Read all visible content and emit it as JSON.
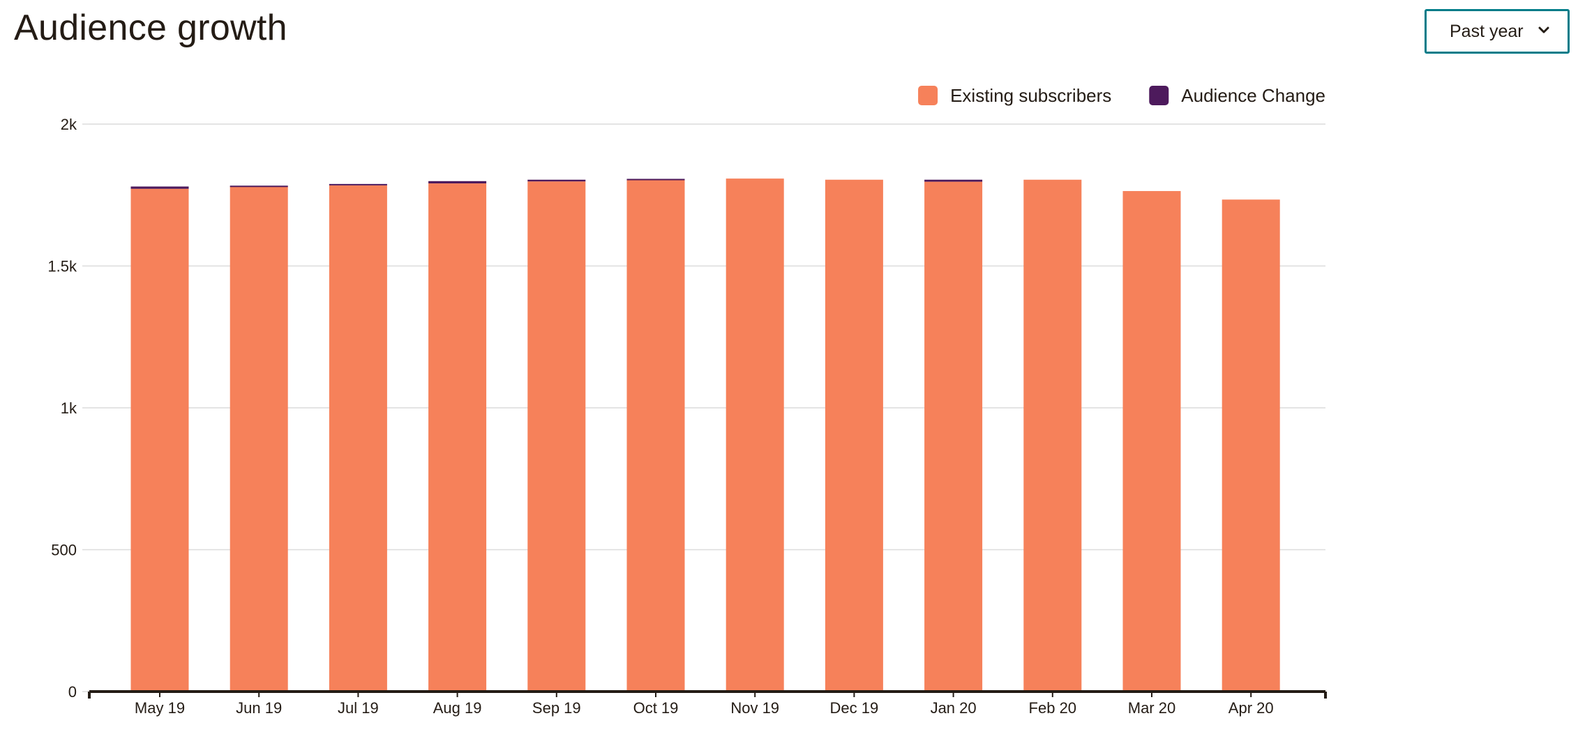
{
  "header": {
    "title": "Audience growth",
    "range_select": {
      "selected": "Past year",
      "icon": "chevron-down-icon"
    }
  },
  "colors": {
    "existing": "#f6815a",
    "change": "#4d1a5c",
    "accent": "#007c89",
    "grid": "#dcdcdc",
    "axis": "#241c15"
  },
  "chart_data": {
    "type": "bar",
    "stacked": true,
    "categories": [
      "May 19",
      "Jun 19",
      "Jul 19",
      "Aug 19",
      "Sep 19",
      "Oct 19",
      "Nov 19",
      "Dec 19",
      "Jan 20",
      "Feb 20",
      "Mar 20",
      "Apr 20"
    ],
    "series": [
      {
        "name": "Existing subscribers",
        "color": "#f6815a",
        "values": [
          1772,
          1781,
          1784,
          1791,
          1798,
          1805,
          1808,
          1804,
          1797,
          1804,
          1764,
          1734
        ]
      },
      {
        "name": "Audience Change",
        "color": "#4d1a5c",
        "values": [
          8,
          2,
          5,
          8,
          6,
          2,
          0,
          0,
          7,
          0,
          0,
          0
        ]
      }
    ],
    "y_ticks": [
      "0",
      "500",
      "1k",
      "1.5k",
      "2k"
    ],
    "y_tick_values": [
      0,
      500,
      1000,
      1500,
      2000
    ],
    "ylim": [
      0,
      2000
    ],
    "grid": true,
    "legend_position": "top-right"
  }
}
